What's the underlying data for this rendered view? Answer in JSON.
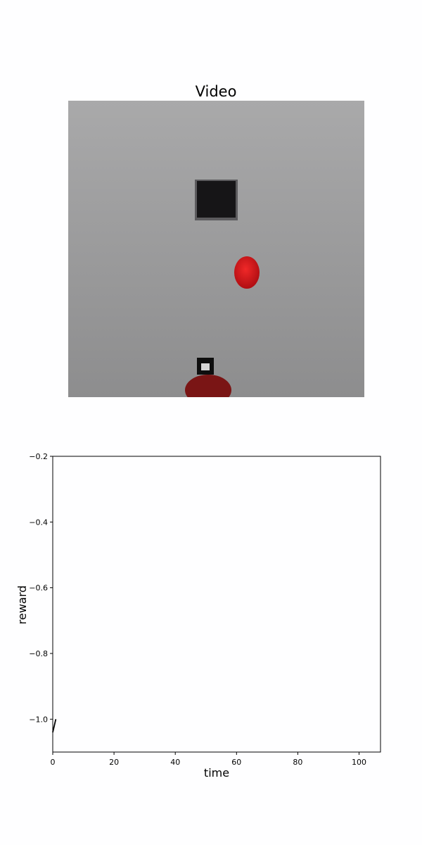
{
  "video": {
    "title": "Video",
    "colors": {
      "floor_top": "#a9a9aa",
      "floor_bottom": "#8d8d8e",
      "block": "#161517",
      "ball": "#cf1418",
      "robot": "#7a1515"
    },
    "objects": [
      "dark-square-block",
      "red-ball",
      "robot-gripper"
    ]
  },
  "chart_data": {
    "type": "line",
    "title": "",
    "xlabel": "time",
    "ylabel": "reward",
    "xlim": [
      0,
      107
    ],
    "ylim": [
      -1.1,
      -0.2
    ],
    "xticks": [
      0,
      20,
      40,
      60,
      80,
      100
    ],
    "xtick_labels": [
      "0",
      "20",
      "40",
      "60",
      "80",
      "100"
    ],
    "yticks": [
      -0.2,
      -0.4,
      -0.6,
      -0.8,
      -1.0
    ],
    "ytick_labels": [
      "−0.2",
      "−0.4",
      "−0.6",
      "−0.8",
      "−1.0"
    ],
    "grid": false,
    "line_color": "#000000",
    "series": [
      {
        "x": [
          0,
          1
        ],
        "y": [
          -1.04,
          -1.0
        ]
      }
    ]
  }
}
